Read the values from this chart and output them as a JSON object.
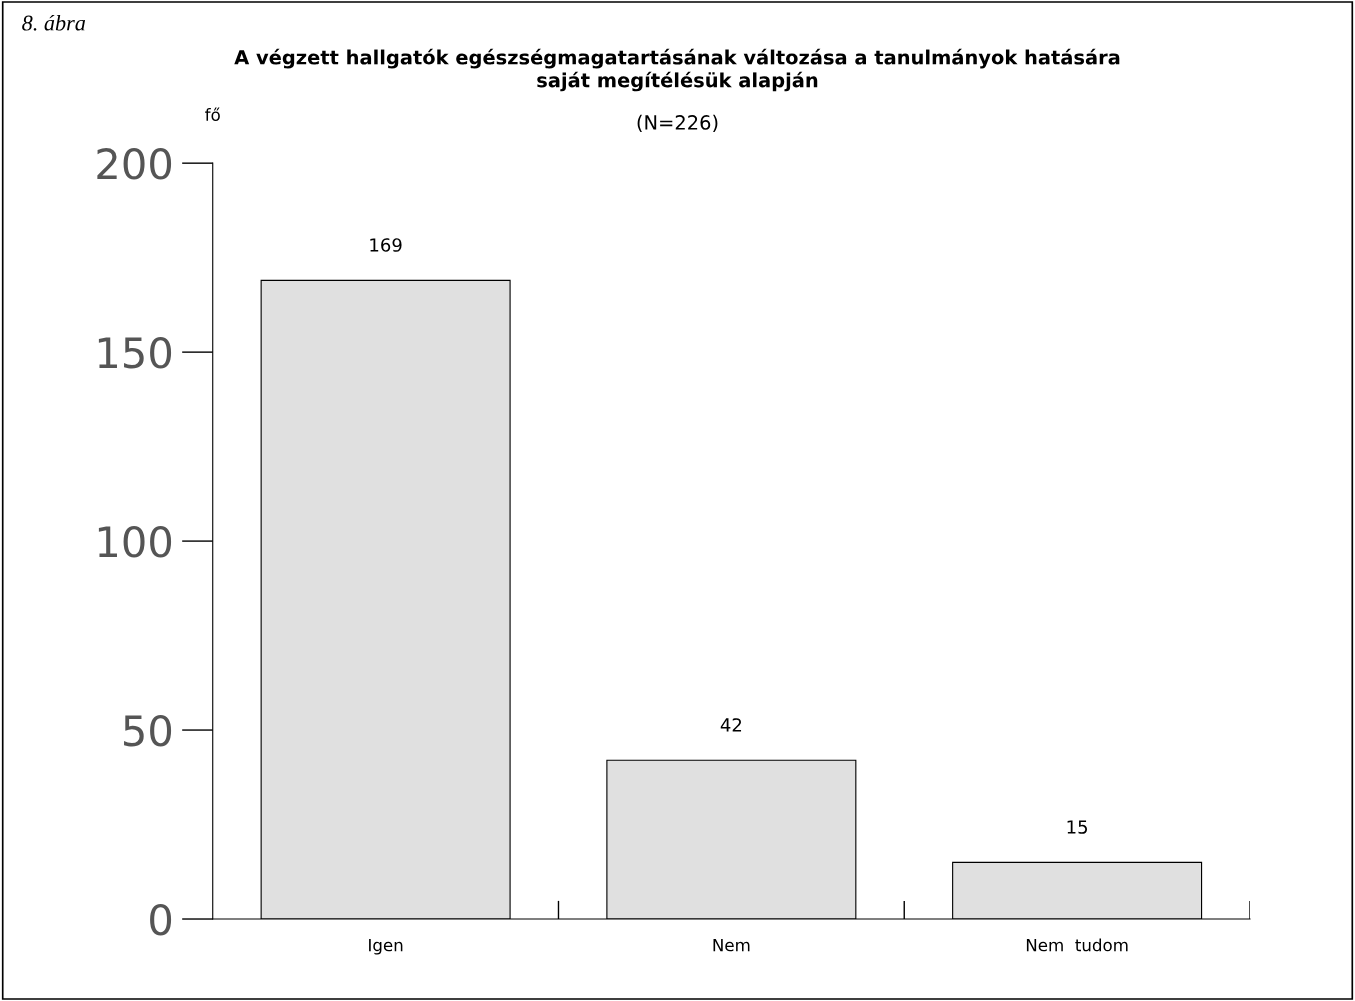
{
  "chart_data": {
    "type": "bar",
    "title": "A végzett hallgatók egészségmagatartásának változása a tanulmányok hatására\nsaját megítélésük alapján",
    "subtitle": "(N=226)",
    "ylabel": "fő",
    "annotations": [
      "8. ábra"
    ],
    "categories": [
      "Igen",
      "Nem",
      "Nem  tudom"
    ],
    "values": [
      169,
      42,
      15
    ],
    "color": "#e0e0e0",
    "ylim": [
      0,
      200
    ],
    "yticks": [
      0,
      50,
      100,
      150,
      200
    ],
    "grid": false,
    "data_labels": true
  }
}
